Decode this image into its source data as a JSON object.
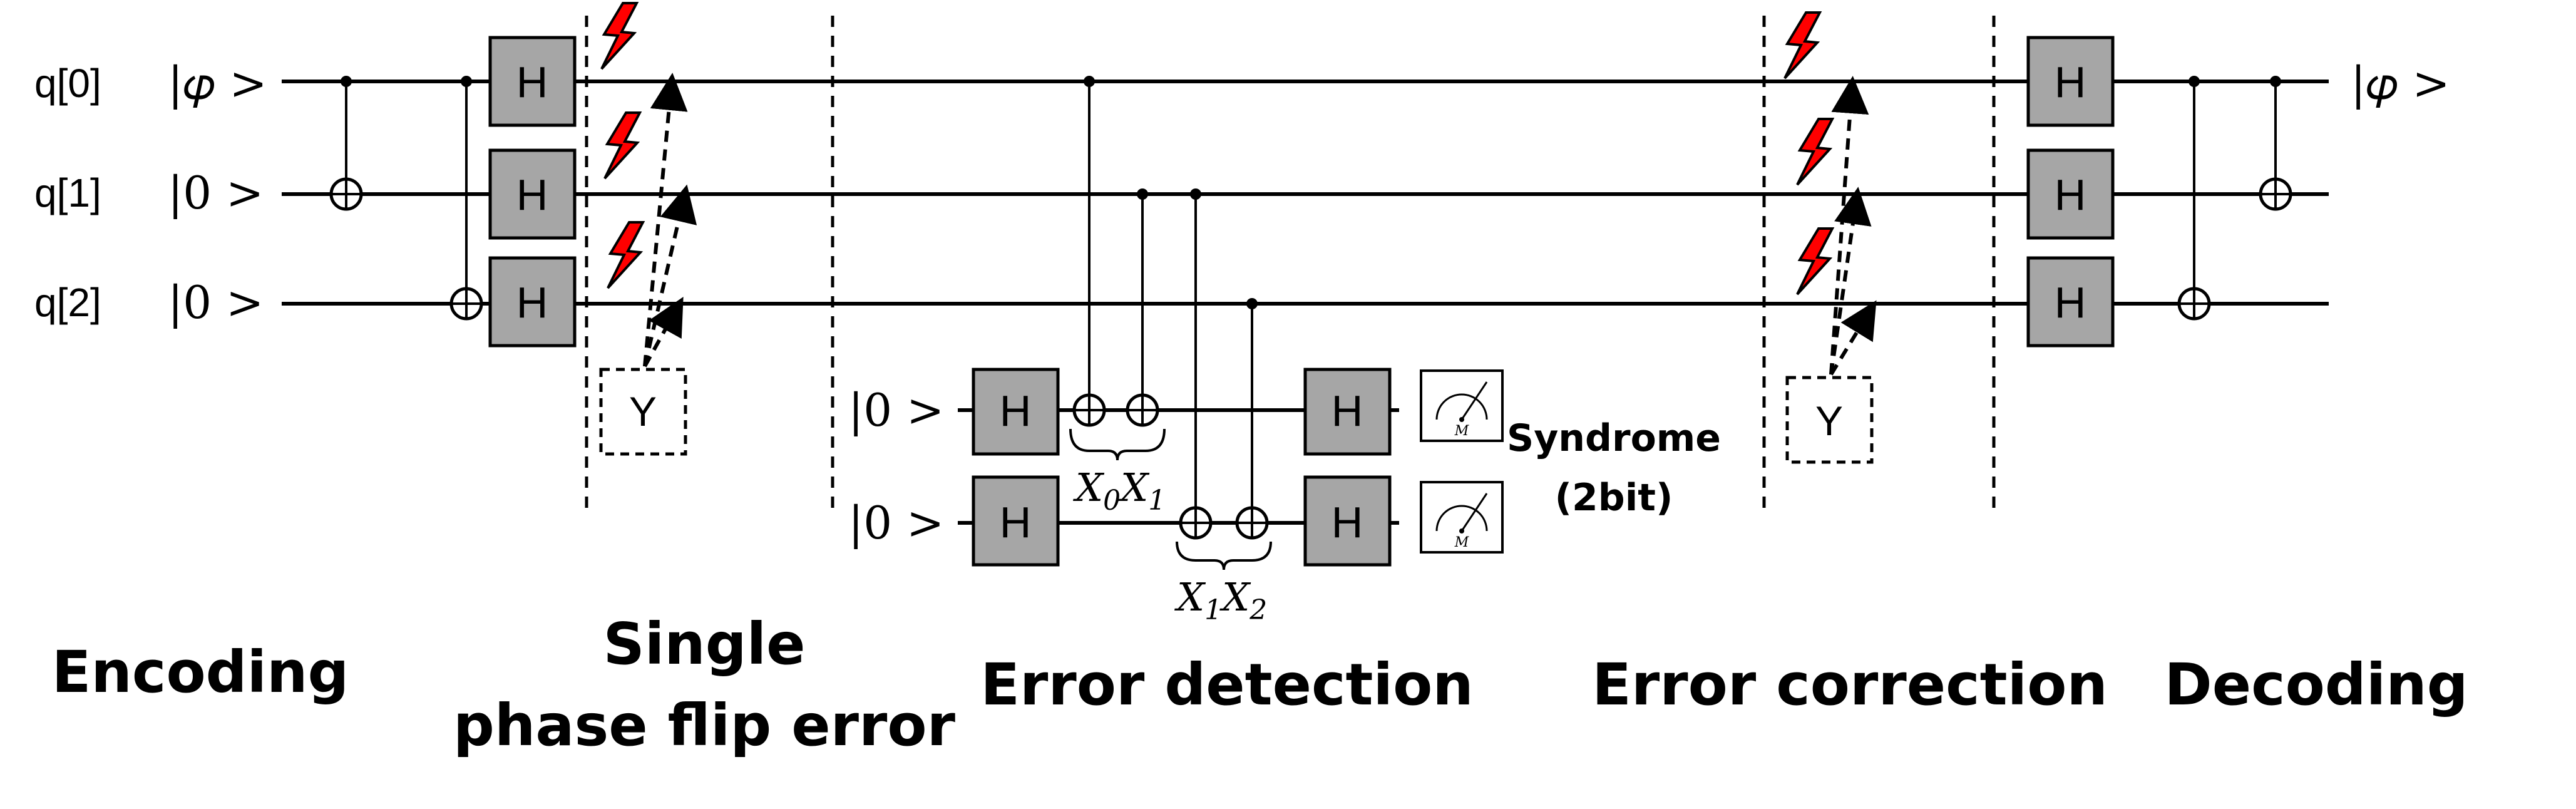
{
  "qubits": {
    "q0": {
      "label": "q[0]",
      "state": "|𝜑 >"
    },
    "q1": {
      "label": "q[1]",
      "state": "|0 >"
    },
    "q2": {
      "label": "q[2]",
      "state": "|0 >"
    }
  },
  "ancillas": {
    "a0": {
      "state": "|0 >"
    },
    "a1": {
      "state": "|0 >"
    }
  },
  "output_state": "|𝜑 >",
  "gates": {
    "h": "H",
    "y": "Y",
    "meter": "M"
  },
  "stabilizers": {
    "x0x1": {
      "op1": "X",
      "sub1": "0",
      "op2": "X",
      "sub2": "1"
    },
    "x1x2": {
      "op1": "X",
      "sub1": "1",
      "op2": "X",
      "sub2": "2"
    }
  },
  "syndrome": {
    "line1": "Syndrome",
    "line2": "(2bit)"
  },
  "sections": {
    "encoding": "Encoding",
    "phase_flip_line1": "Single",
    "phase_flip_line2": "phase flip error",
    "detection": "Error detection",
    "correction": "Error correction",
    "decoding": "Decoding"
  },
  "colors": {
    "gate_fill": "#a6a6a6",
    "bolt_fill": "#ff0000"
  }
}
